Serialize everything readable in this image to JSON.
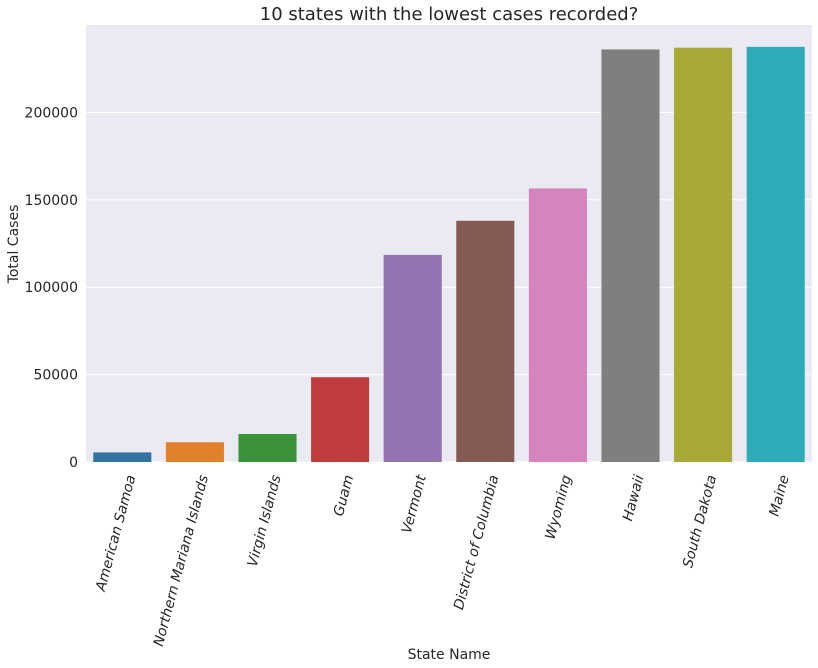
{
  "chart_data": {
    "type": "bar",
    "title": "10 states with the lowest cases recorded?",
    "xlabel": "State Name",
    "ylabel": "Total Cases",
    "categories": [
      "American Samoa",
      "Northern Mariana Islands",
      "Virgin Islands",
      "Guam",
      "Vermont",
      "District of Columbia",
      "Wyoming",
      "Hawaii",
      "South Dakota",
      "Maine"
    ],
    "values": [
      5500,
      11300,
      16000,
      48500,
      118500,
      138000,
      156500,
      236000,
      237000,
      237500
    ],
    "colors": [
      "#3274a1",
      "#e1812c",
      "#3a923a",
      "#c03d3e",
      "#9372b2",
      "#845b53",
      "#d684bd",
      "#7f7f7f",
      "#a9aa35",
      "#2eabb8"
    ],
    "ylim": [
      0,
      250000
    ],
    "yticks": [
      0,
      50000,
      100000,
      150000,
      200000
    ],
    "ytick_labels": [
      "0",
      "50000",
      "100000",
      "150000",
      "200000"
    ],
    "grid": true,
    "background": "#eaeaf2",
    "grid_color": "#ffffff"
  }
}
